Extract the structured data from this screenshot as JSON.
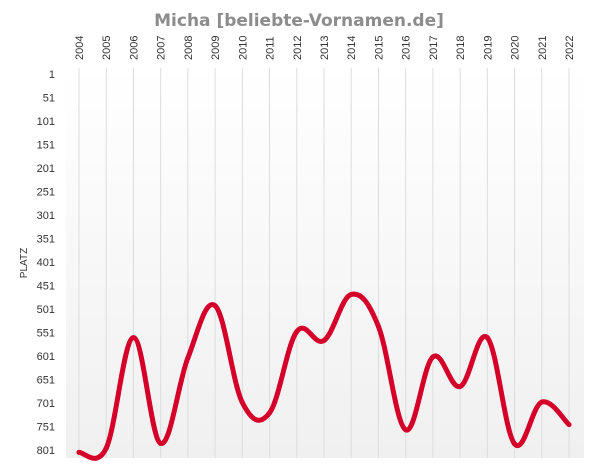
{
  "chart_data": {
    "type": "line",
    "title": "Micha [beliebte-Vornamen.de]",
    "ylabel": "PLATZ",
    "xlabel": "",
    "x": [
      "2004",
      "2005",
      "2006",
      "2007",
      "2008",
      "2009",
      "2010",
      "2011",
      "2012",
      "2013",
      "2014",
      "2015",
      "2016",
      "2017",
      "2018",
      "2019",
      "2020",
      "2021",
      "2022"
    ],
    "series": [
      {
        "values": [
          806,
          797,
          562,
          787,
          605,
          494,
          700,
          722,
          549,
          568,
          470,
          538,
          758,
          603,
          666,
          562,
          788,
          699,
          747
        ]
      }
    ],
    "y_ticks": [
      "1",
      "51",
      "101",
      "151",
      "201",
      "251",
      "301",
      "351",
      "401",
      "451",
      "501",
      "551",
      "601",
      "651",
      "701",
      "751",
      "801"
    ],
    "ylim": [
      1,
      801
    ],
    "y_inverted": true,
    "grid": "vertical",
    "line_color": "#d4002a",
    "background_gradient": [
      "#ffffff",
      "#f0f0f0"
    ]
  }
}
